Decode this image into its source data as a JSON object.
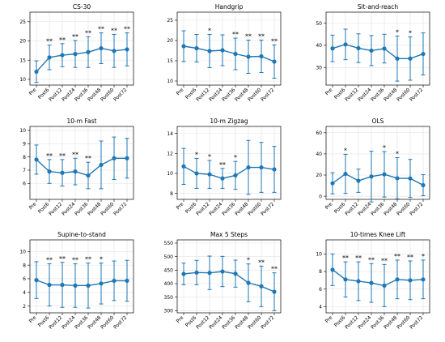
{
  "chart_data": [
    {
      "type": "line",
      "title": "CS-30",
      "x": [
        "Pre",
        "Post6",
        "Post12",
        "Post24",
        "Post36",
        "Post48",
        "Post60",
        "Post72"
      ],
      "y": [
        12.0,
        15.7,
        16.3,
        16.6,
        17.1,
        18.1,
        17.4,
        17.8
      ],
      "err": [
        2.8,
        3.2,
        3.0,
        3.5,
        4.0,
        4.0,
        4.3,
        4.3
      ],
      "sig": [
        "",
        "**",
        "**",
        "**",
        "**",
        "**",
        "**",
        "**"
      ],
      "ylim": [
        8.5,
        27.5
      ],
      "yticks": [
        10,
        15,
        20,
        25
      ],
      "grid": true
    },
    {
      "type": "line",
      "title": "Handgrip",
      "x": [
        "Pre",
        "Post6",
        "Post12",
        "Post24",
        "Post36",
        "Post48",
        "Post60",
        "Post72"
      ],
      "y": [
        18.6,
        18.1,
        17.4,
        17.6,
        16.7,
        16.0,
        16.1,
        14.8
      ],
      "err": [
        3.8,
        3.4,
        4.1,
        3.8,
        3.9,
        4.1,
        4.0,
        4.1
      ],
      "sig": [
        "",
        "",
        "*",
        "",
        "**",
        "**",
        "**",
        "**"
      ],
      "ylim": [
        9.0,
        27.0
      ],
      "yticks": [
        10,
        15,
        20,
        25
      ],
      "grid": true
    },
    {
      "type": "line",
      "title": "Sit-and-reach",
      "x": [
        "Pre",
        "Post6",
        "Post12",
        "Post24",
        "Post36",
        "Post48",
        "Post60",
        "Post72"
      ],
      "y": [
        38.6,
        40.4,
        38.7,
        37.6,
        38.5,
        34.0,
        34.0,
        36.1
      ],
      "err": [
        6.0,
        6.9,
        6.5,
        6.8,
        6.5,
        10.2,
        9.8,
        9.5
      ],
      "sig": [
        "",
        "",
        "",
        "",
        "",
        "*",
        "*",
        ""
      ],
      "ylim": [
        22,
        55
      ],
      "yticks": [
        30,
        40,
        50
      ],
      "grid": true
    },
    {
      "type": "line",
      "title": "10-m Fast",
      "x": [
        "Pre",
        "Post6",
        "Post12",
        "Post24",
        "Post36",
        "Post48",
        "Post60",
        "Post72"
      ],
      "y": [
        7.8,
        6.9,
        6.8,
        6.9,
        6.6,
        7.4,
        7.9,
        7.9
      ],
      "err": [
        1.1,
        0.9,
        1.0,
        1.0,
        1.0,
        1.8,
        1.6,
        1.5
      ],
      "sig": [
        "",
        "**",
        "**",
        "**",
        "**",
        "",
        "",
        ""
      ],
      "ylim": [
        4.8,
        10.3
      ],
      "yticks": [
        6,
        7,
        8,
        9,
        10
      ],
      "grid": true
    },
    {
      "type": "line",
      "title": "10-m Zigzag",
      "x": [
        "Pre",
        "Post6",
        "Post12",
        "Post24",
        "Post36",
        "Post48",
        "Post60",
        "Post72"
      ],
      "y": [
        10.7,
        10.0,
        9.9,
        9.5,
        9.8,
        10.6,
        10.6,
        10.4
      ],
      "err": [
        1.8,
        1.5,
        1.4,
        1.0,
        1.4,
        2.7,
        2.5,
        2.3
      ],
      "sig": [
        "",
        "*",
        "*",
        "**",
        "*",
        "",
        "",
        ""
      ],
      "ylim": [
        7.4,
        14.7
      ],
      "yticks": [
        8,
        10,
        12,
        14
      ],
      "grid": true
    },
    {
      "type": "line",
      "title": "OLS",
      "x": [
        "Pre",
        "Post6",
        "Post12",
        "Post24",
        "Post36",
        "Post48",
        "Post60",
        "Post72"
      ],
      "y": [
        12.2,
        21.1,
        14.6,
        18.6,
        20.7,
        17.0,
        16.8,
        10.4
      ],
      "err": [
        10.0,
        18.5,
        11.0,
        24.0,
        21.5,
        19.5,
        18.0,
        10.0
      ],
      "sig": [
        "",
        "*",
        "",
        "",
        "*",
        "*",
        "",
        ""
      ],
      "ylim": [
        -3,
        66
      ],
      "yticks": [
        0,
        20,
        40,
        60
      ],
      "grid": true
    },
    {
      "type": "line",
      "title": "Supine-to-stand",
      "x": [
        "Pre",
        "Post6",
        "Post12",
        "Post24",
        "Post36",
        "Post48",
        "Post60",
        "Post72"
      ],
      "y": [
        5.8,
        5.1,
        5.1,
        5.0,
        5.0,
        5.3,
        5.7,
        5.7
      ],
      "err": [
        2.7,
        3.1,
        3.3,
        3.2,
        3.3,
        3.0,
        2.9,
        3.0
      ],
      "sig": [
        "",
        "**",
        "**",
        "**",
        "**",
        "*",
        "",
        ""
      ],
      "ylim": [
        1.0,
        11.7
      ],
      "yticks": [
        2,
        4,
        6,
        8,
        10
      ],
      "grid": true
    },
    {
      "type": "line",
      "title": "Max 5 Steps",
      "x": [
        "Pre",
        "Post6",
        "Post12",
        "Post24",
        "Post36",
        "Post48",
        "Post60",
        "Post72"
      ],
      "y": [
        436,
        441,
        440,
        445,
        437,
        403,
        390,
        370
      ],
      "err": [
        40,
        45,
        62,
        56,
        50,
        70,
        75,
        70
      ],
      "sig": [
        "",
        "",
        "",
        "",
        "",
        "*",
        "**",
        "**"
      ],
      "ylim": [
        292,
        562
      ],
      "yticks": [
        300,
        350,
        400,
        450,
        500,
        550
      ],
      "grid": true
    },
    {
      "type": "line",
      "title": "10-times Knee Lift",
      "x": [
        "Pre",
        "Post6",
        "Post12",
        "Post24",
        "Post36",
        "Post48",
        "Post60",
        "Post72"
      ],
      "y": [
        8.2,
        7.1,
        6.9,
        6.7,
        6.4,
        7.1,
        7.0,
        7.1
      ],
      "err": [
        1.8,
        2.0,
        2.2,
        2.2,
        2.4,
        2.2,
        2.2,
        2.2
      ],
      "sig": [
        "",
        "**",
        "**",
        "**",
        "**",
        "**",
        "**",
        "*"
      ],
      "ylim": [
        3.3,
        11.6
      ],
      "yticks": [
        4,
        6,
        8,
        10
      ],
      "grid": true
    }
  ]
}
